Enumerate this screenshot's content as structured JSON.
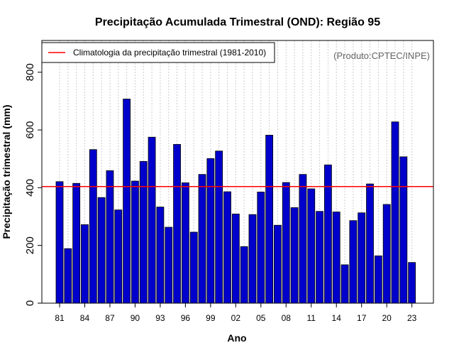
{
  "chart_data": {
    "type": "bar",
    "title": "Precipitação Acumulada Trimestral (OND): Região 95",
    "xlabel": "Ano",
    "ylabel": "Precipitação trimestral (mm)",
    "credit": "(Produto:CPTEC/INPE)",
    "ylim": [
      0,
      910
    ],
    "yticks": [
      0,
      200,
      400,
      600,
      800
    ],
    "grid": "vertical-dotted",
    "legend": {
      "position": "top-left",
      "entries": [
        {
          "label": "Climatologia da precipitação trimestral (1981-2010)",
          "color": "#ff0000"
        }
      ]
    },
    "climatology": 404,
    "bar_color": "#0000cc",
    "categories": [
      "81",
      "82",
      "83",
      "84",
      "85",
      "86",
      "87",
      "88",
      "89",
      "90",
      "91",
      "92",
      "93",
      "94",
      "95",
      "96",
      "97",
      "98",
      "99",
      "00",
      "01",
      "02",
      "03",
      "04",
      "05",
      "06",
      "07",
      "08",
      "09",
      "10",
      "11",
      "12",
      "13",
      "14",
      "15",
      "16",
      "17",
      "18",
      "19",
      "20",
      "21",
      "22",
      "23"
    ],
    "xtick_labels": [
      "81",
      "84",
      "87",
      "90",
      "93",
      "96",
      "99",
      "02",
      "05",
      "08",
      "11",
      "14",
      "17",
      "20",
      "23"
    ],
    "values": [
      421,
      189,
      415,
      272,
      532,
      366,
      459,
      323,
      707,
      423,
      491,
      575,
      333,
      263,
      550,
      417,
      246,
      446,
      501,
      527,
      386,
      309,
      196,
      307,
      385,
      582,
      270,
      418,
      331,
      446,
      396,
      318,
      479,
      316,
      133,
      286,
      313,
      413,
      164,
      342,
      628,
      507,
      141
    ]
  }
}
